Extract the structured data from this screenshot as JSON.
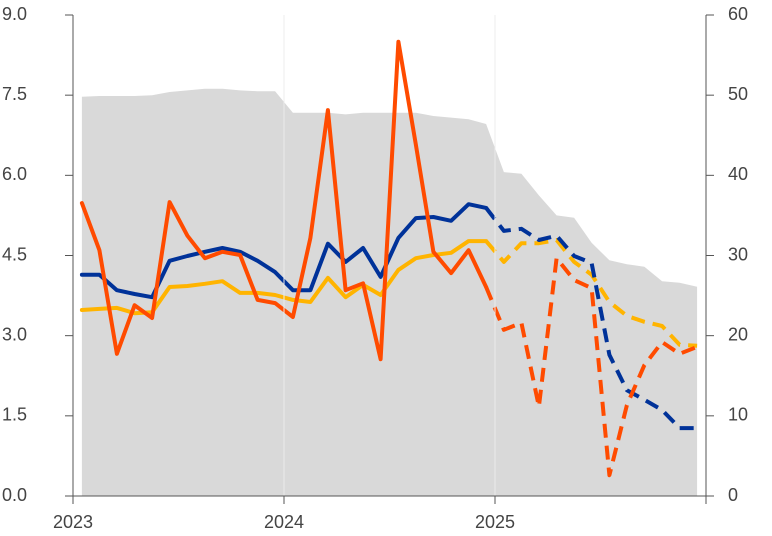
{
  "chart_data": {
    "type": "line",
    "xlim": [
      2023,
      2026
    ],
    "xticks": [
      2023,
      2024,
      2025
    ],
    "ylim": [
      0,
      9
    ],
    "yticks": [
      {
        "value": 0,
        "label": "0.0"
      },
      1.5,
      {
        "value": 3,
        "label": "3.0"
      },
      4.5,
      {
        "value": 6,
        "label": "6.0"
      },
      7.5,
      {
        "value": 9,
        "label": "9.0"
      }
    ],
    "y2lim": [
      0,
      60
    ],
    "y2ticks": [
      0,
      10,
      20,
      30,
      40,
      50,
      60
    ],
    "grid": "x",
    "x": [
      2023.042,
      2023.125,
      2023.208,
      2023.292,
      2023.375,
      2023.458,
      2023.542,
      2023.625,
      2023.708,
      2023.792,
      2023.875,
      2023.958,
      2024.042,
      2024.125,
      2024.208,
      2024.292,
      2024.375,
      2024.458,
      2024.542,
      2024.625,
      2024.708,
      2024.792,
      2024.875,
      2024.958,
      2025.042,
      2025.125,
      2025.208,
      2025.292,
      2025.375,
      2025.458,
      2025.542,
      2025.625,
      2025.708,
      2025.792,
      2025.875,
      2025.958
    ],
    "series": [
      {
        "type": "area",
        "axis": "y2",
        "color": "#d9d9d9",
        "values": [
          49.8,
          49.9,
          49.9,
          49.9,
          50.0,
          50.4,
          50.6,
          50.8,
          50.8,
          50.6,
          50.5,
          50.5,
          47.8,
          47.8,
          47.8,
          47.6,
          47.8,
          47.8,
          47.8,
          47.8,
          47.4,
          47.2,
          47.0,
          46.4,
          40.4,
          40.2,
          37.5,
          35.0,
          34.7,
          31.6,
          29.4,
          28.9,
          28.6,
          26.8,
          26.6,
          26.1
        ]
      },
      {
        "type": "line",
        "style": "solid",
        "color": "#ffb400",
        "values": [
          3.48,
          3.5,
          3.52,
          3.42,
          3.44,
          3.91,
          3.93,
          3.97,
          4.02,
          3.8,
          3.8,
          3.76,
          3.67,
          3.63,
          4.08,
          3.72,
          3.95,
          3.76,
          4.23,
          4.45,
          4.51,
          4.55,
          4.77,
          4.77,
          null,
          null,
          null,
          null,
          null,
          null,
          null,
          null,
          null,
          null,
          null,
          null
        ]
      },
      {
        "type": "line",
        "style": "dashed",
        "color": "#ffb400",
        "values": [
          null,
          null,
          null,
          null,
          null,
          null,
          null,
          null,
          null,
          null,
          null,
          null,
          null,
          null,
          null,
          null,
          null,
          null,
          null,
          null,
          null,
          null,
          null,
          4.77,
          4.38,
          4.73,
          4.73,
          4.79,
          4.38,
          4.14,
          3.63,
          3.37,
          3.26,
          3.18,
          2.83,
          2.81
        ]
      },
      {
        "type": "line",
        "style": "solid",
        "color": "#003299",
        "values": [
          4.14,
          4.14,
          3.85,
          3.78,
          3.72,
          4.4,
          4.49,
          4.57,
          4.64,
          4.57,
          4.4,
          4.19,
          3.85,
          3.85,
          4.72,
          4.38,
          4.64,
          4.1,
          4.83,
          5.2,
          5.22,
          5.15,
          5.46,
          5.39,
          null,
          null,
          null,
          null,
          null,
          null,
          null,
          null,
          null,
          null,
          null,
          null
        ]
      },
      {
        "type": "line",
        "style": "dashed",
        "color": "#003299",
        "values": [
          null,
          null,
          null,
          null,
          null,
          null,
          null,
          null,
          null,
          null,
          null,
          null,
          null,
          null,
          null,
          null,
          null,
          null,
          null,
          null,
          null,
          null,
          null,
          5.39,
          4.96,
          5.0,
          4.79,
          4.87,
          4.49,
          4.36,
          2.64,
          1.98,
          1.8,
          1.61,
          1.27,
          1.27
        ]
      },
      {
        "type": "line",
        "style": "solid",
        "color": "#ff4b00",
        "values": [
          5.48,
          4.6,
          2.66,
          3.57,
          3.33,
          5.5,
          4.87,
          4.45,
          4.57,
          4.51,
          3.67,
          3.61,
          3.35,
          4.83,
          7.22,
          3.85,
          3.98,
          2.56,
          8.5,
          6.57,
          4.57,
          4.17,
          4.6,
          3.91,
          null,
          null,
          null,
          null,
          null,
          null,
          null,
          null,
          null,
          null,
          null,
          null
        ]
      },
      {
        "type": "line",
        "style": "dashed",
        "color": "#ff4b00",
        "values": [
          null,
          null,
          null,
          null,
          null,
          null,
          null,
          null,
          null,
          null,
          null,
          null,
          null,
          null,
          null,
          null,
          null,
          null,
          null,
          null,
          null,
          null,
          null,
          3.91,
          3.11,
          3.24,
          1.67,
          4.45,
          4.04,
          3.89,
          0.39,
          1.7,
          2.45,
          2.88,
          2.66,
          2.79
        ]
      }
    ]
  }
}
